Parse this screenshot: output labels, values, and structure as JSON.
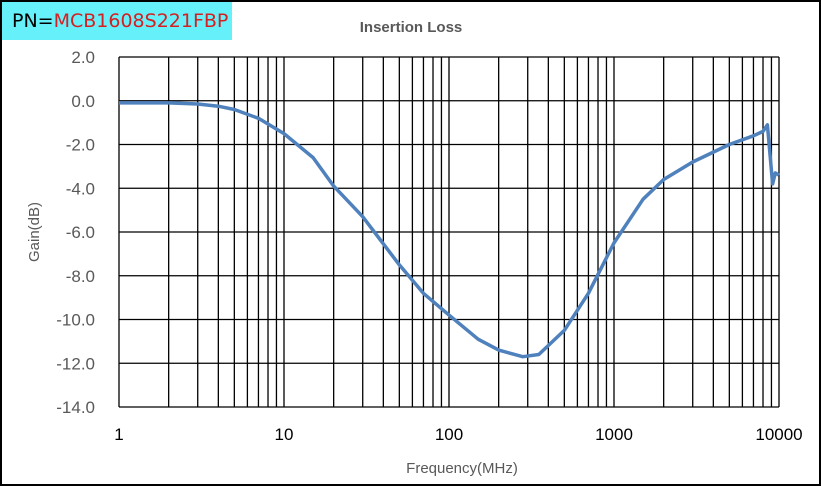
{
  "part_label": {
    "prefix": "PN=",
    "value": "MCB1608S221FBP",
    "bg_color": "#66f0fa",
    "value_color": "#d42020"
  },
  "chart_data": {
    "type": "line",
    "title": "Insertion Loss",
    "xlabel": "Frequency(MHz)",
    "ylabel": "Gain(dB)",
    "xscale": "log",
    "xlim": [
      1,
      10000
    ],
    "ylim": [
      -14,
      2
    ],
    "grid": true,
    "xticks": [
      "1",
      "10",
      "100",
      "1000",
      "10000"
    ],
    "yticks": [
      "2.0",
      "0.0",
      "-2.0",
      "-4.0",
      "-6.0",
      "-8.0",
      "-10.0",
      "-12.0",
      "-14.0"
    ],
    "series": [
      {
        "color": "#4f81bd",
        "x": [
          1,
          1.5,
          2,
          3,
          4,
          5,
          7,
          10,
          15,
          20,
          30,
          50,
          70,
          100,
          150,
          200,
          280,
          350,
          500,
          700,
          1000,
          1500,
          2000,
          3000,
          5000,
          7000,
          8000,
          8500,
          9150,
          9500,
          10000
        ],
        "y": [
          -0.1,
          -0.1,
          -0.1,
          -0.15,
          -0.25,
          -0.4,
          -0.8,
          -1.5,
          -2.6,
          -3.9,
          -5.3,
          -7.5,
          -8.8,
          -9.8,
          -10.9,
          -11.4,
          -11.7,
          -11.6,
          -10.5,
          -8.8,
          -6.5,
          -4.5,
          -3.6,
          -2.8,
          -2.0,
          -1.6,
          -1.4,
          -1.1,
          -3.8,
          -3.3,
          -3.4
        ]
      }
    ]
  }
}
